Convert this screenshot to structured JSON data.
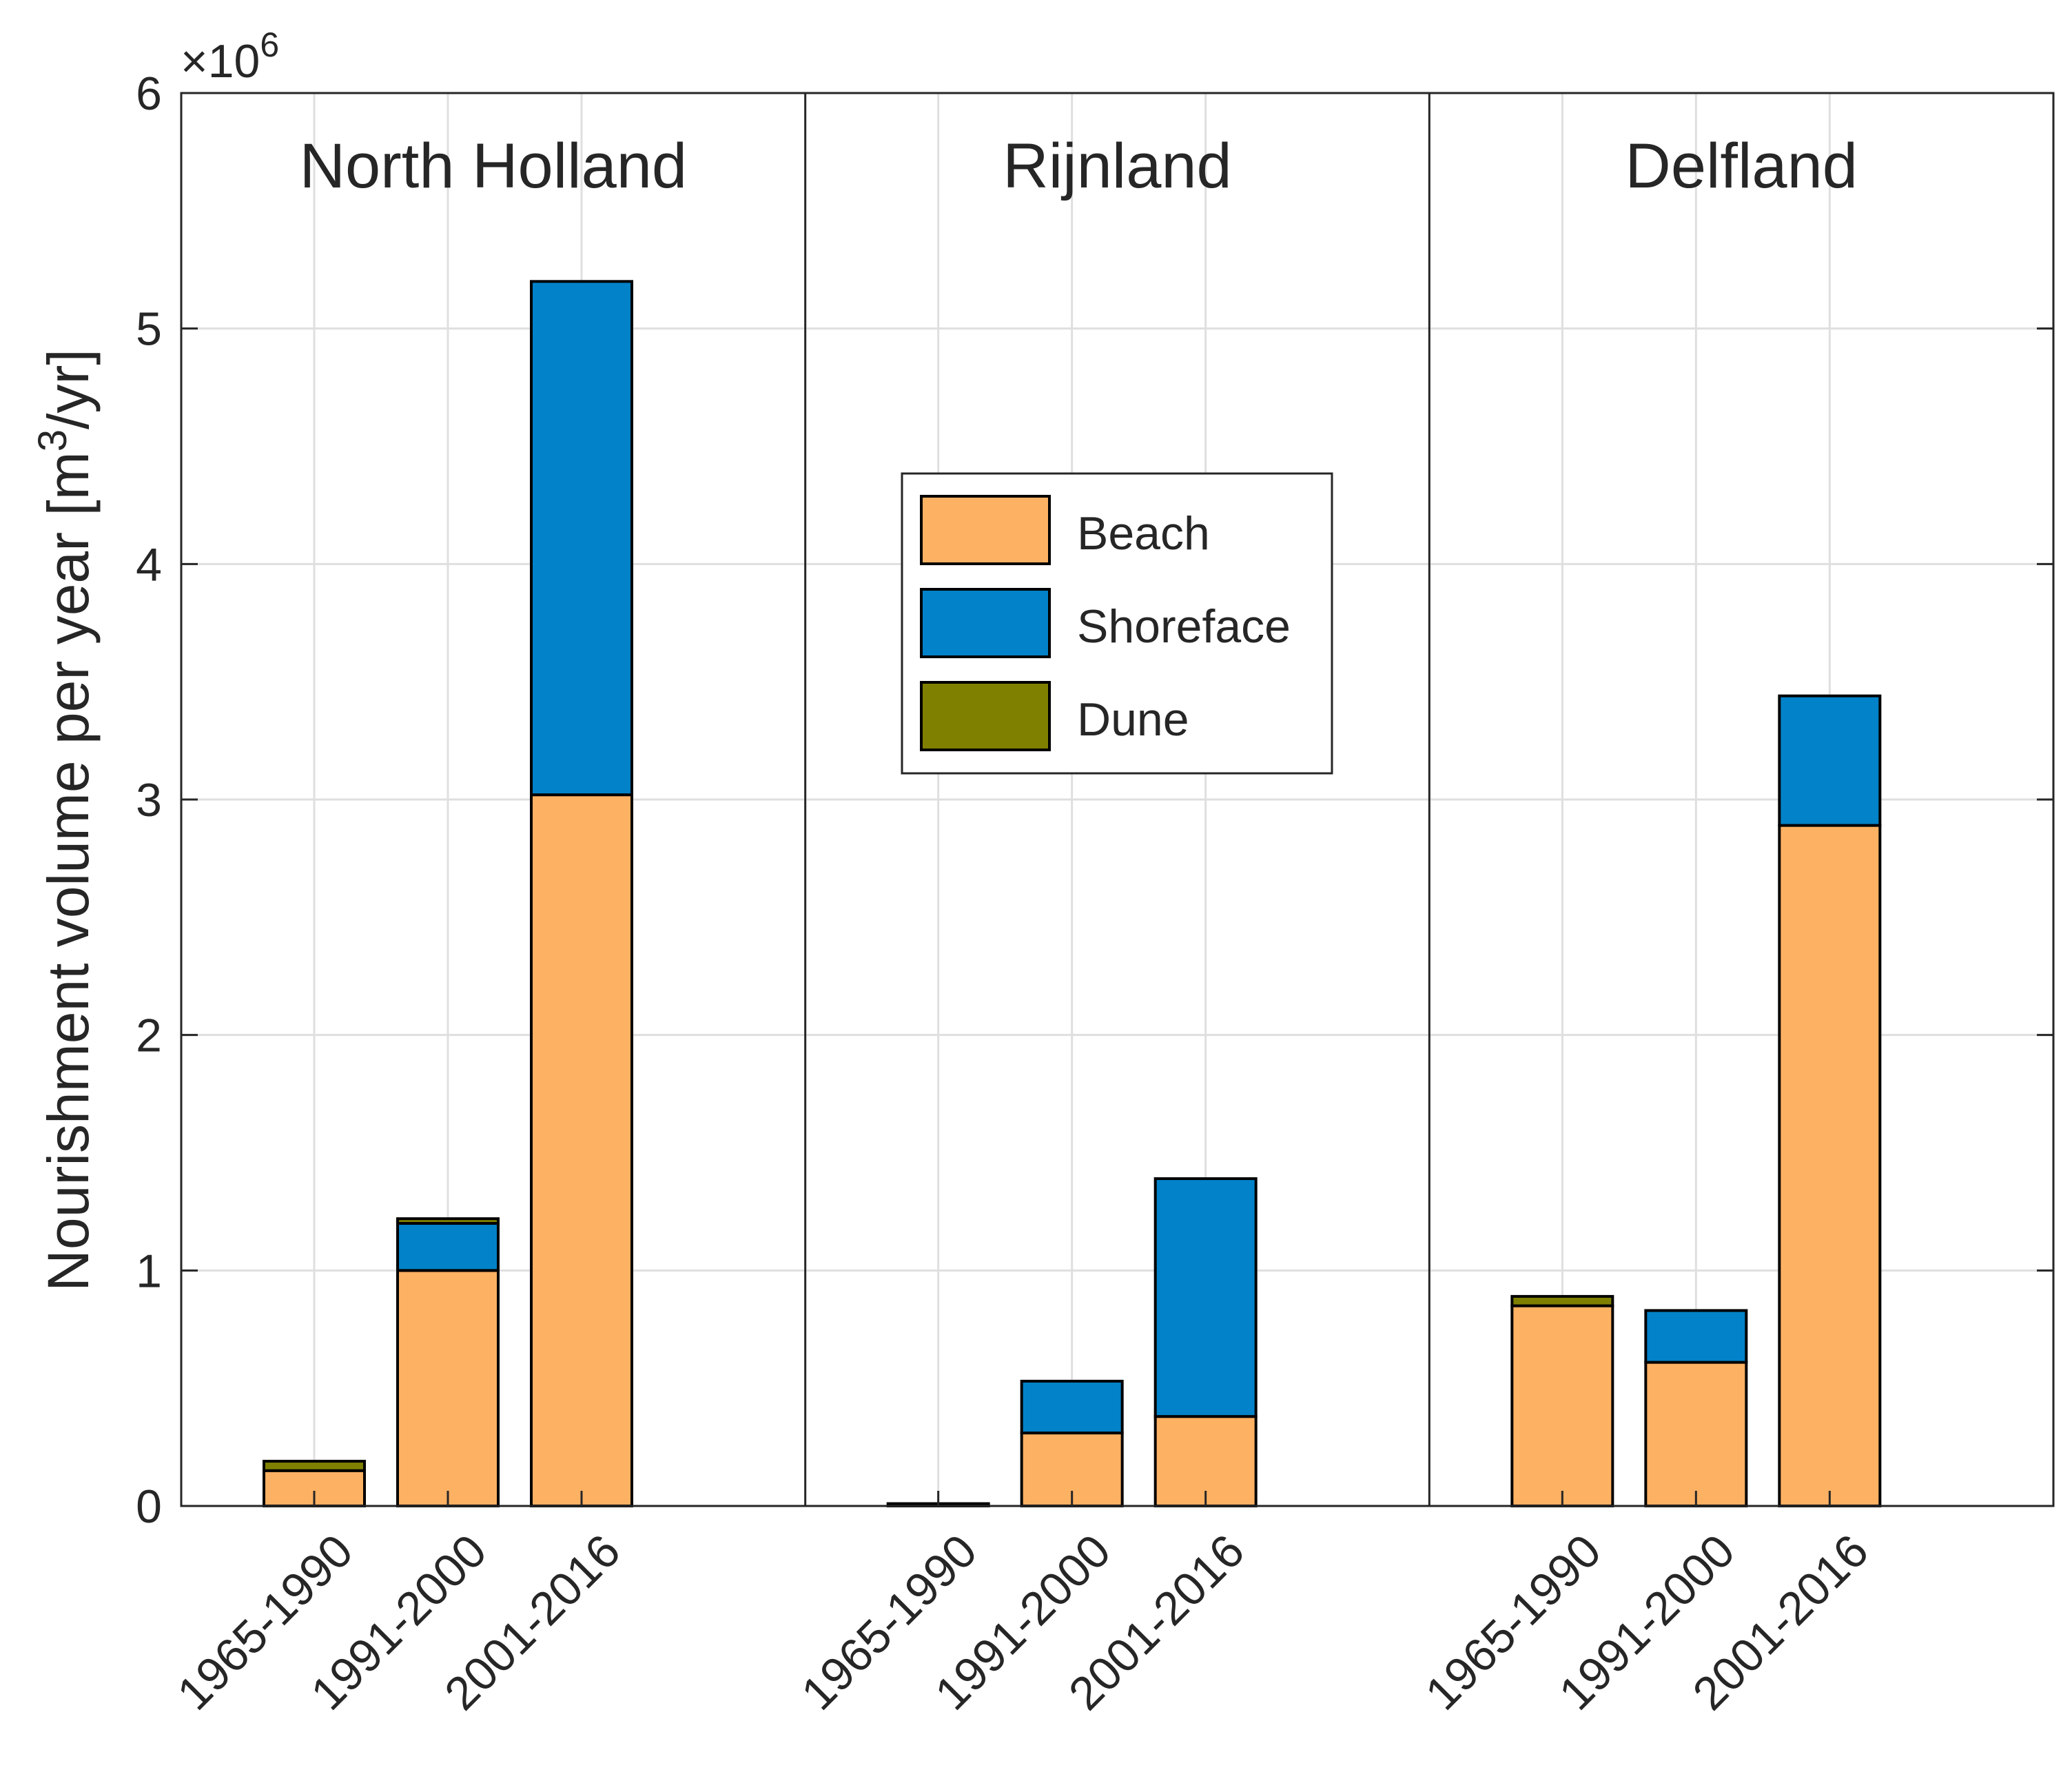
{
  "chart_data": {
    "type": "bar",
    "stacked": true,
    "ylabel": "Nourishment volume per year [m³/yr]",
    "ylabel_main": "Nourishment volume per year [m",
    "ylabel_sup": "3",
    "ylabel_tail": "/yr]",
    "exponent_times": "×10",
    "exponent_power": "6",
    "ylim": [
      0,
      6
    ],
    "yticks": [
      "0",
      "1",
      "2",
      "3",
      "4",
      "5",
      "6"
    ],
    "categories": [
      "1965-1990",
      "1991-2000",
      "2001-2016"
    ],
    "regions": [
      {
        "name": "North Holland",
        "series": [
          {
            "name": "Beach",
            "values": [
              0.15,
              1.0,
              3.02
            ]
          },
          {
            "name": "Shoreface",
            "values": [
              0.0,
              0.2,
              2.18
            ]
          },
          {
            "name": "Dune",
            "values": [
              0.04,
              0.02,
              0.0
            ]
          }
        ]
      },
      {
        "name": "Rijnland",
        "series": [
          {
            "name": "Beach",
            "values": [
              0.01,
              0.31,
              0.38
            ]
          },
          {
            "name": "Shoreface",
            "values": [
              0.0,
              0.22,
              1.01
            ]
          },
          {
            "name": "Dune",
            "values": [
              0.0,
              0.0,
              0.0
            ]
          }
        ]
      },
      {
        "name": "Delfland",
        "series": [
          {
            "name": "Beach",
            "values": [
              0.85,
              0.61,
              2.89
            ]
          },
          {
            "name": "Shoreface",
            "values": [
              0.0,
              0.22,
              0.55
            ]
          },
          {
            "name": "Dune",
            "values": [
              0.04,
              0.0,
              0.0
            ]
          }
        ]
      }
    ],
    "legend": {
      "position": "center",
      "entries": [
        "Beach",
        "Shoreface",
        "Dune"
      ]
    },
    "colors": {
      "Beach": "#FDB163",
      "Shoreface": "#0282C8",
      "Dune": "#808000"
    },
    "grid": true
  }
}
